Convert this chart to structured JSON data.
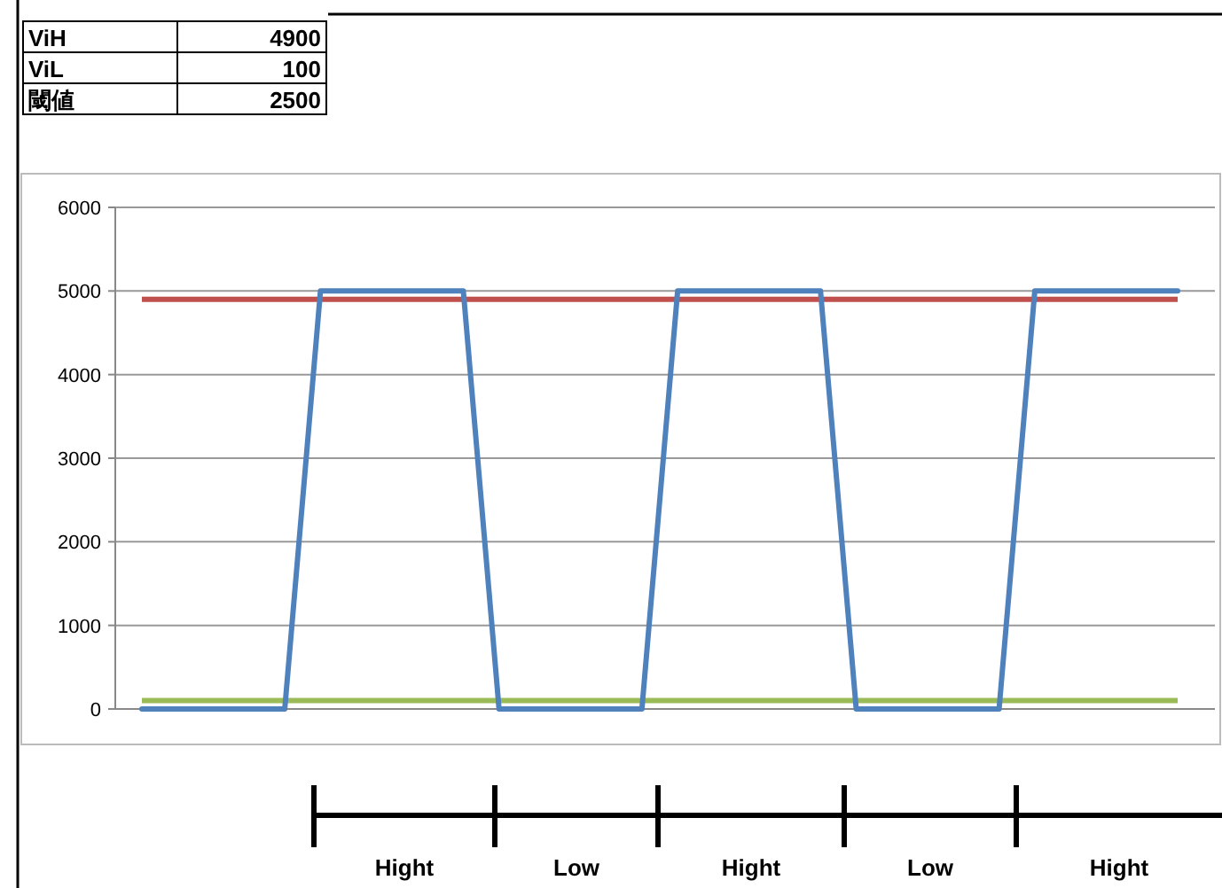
{
  "chart_data": {
    "type": "line",
    "categories": [
      null,
      null,
      null,
      null,
      null,
      null,
      null,
      null,
      null,
      null,
      null,
      null,
      null,
      null,
      null,
      null,
      null,
      null,
      null,
      null,
      null,
      null,
      null,
      null,
      null,
      null,
      null,
      null,
      null,
      null
    ],
    "series": [
      {
        "color": "#4f81bd",
        "values": [
          0,
          0,
          0,
          0,
          0,
          5000,
          5000,
          5000,
          5000,
          5000,
          0,
          0,
          0,
          0,
          0,
          5000,
          5000,
          5000,
          5000,
          5000,
          0,
          0,
          0,
          0,
          0,
          5000,
          5000,
          5000,
          5000,
          5000
        ]
      }
    ],
    "ylim": [
      0,
      6000
    ],
    "yticks": [
      0,
      1000,
      2000,
      3000,
      4000,
      5000,
      6000
    ],
    "grid": "y",
    "ref_lines": [
      {
        "axis": "y",
        "value": 4900,
        "color": "#c0504d"
      },
      {
        "axis": "y",
        "value": 100,
        "color": "#9bbb59"
      }
    ],
    "annotations": [
      "ViH",
      "4900",
      "ViL",
      "100",
      "閾値",
      "2500",
      "Hight",
      "Low",
      "Hight",
      "Low",
      "Hight"
    ]
  }
}
